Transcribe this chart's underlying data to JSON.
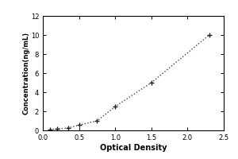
{
  "xlabel": "Optical Density",
  "ylabel": "Concentration(ng/mL)",
  "x_data": [
    0.1,
    0.2,
    0.35,
    0.5,
    0.75,
    1.0,
    1.5,
    2.3
  ],
  "y_data": [
    0.1,
    0.15,
    0.25,
    0.55,
    1.0,
    2.5,
    5.0,
    10.0
  ],
  "xlim": [
    0,
    2.5
  ],
  "ylim": [
    0,
    12
  ],
  "xticks": [
    0,
    0.5,
    1.0,
    1.5,
    2.0,
    2.5
  ],
  "yticks": [
    0,
    2,
    4,
    6,
    8,
    10,
    12
  ],
  "line_color": "#444444",
  "marker_color": "#222222",
  "bg_color": "#ffffff",
  "plot_bg": "#ffffff",
  "xlabel_fontsize": 7,
  "ylabel_fontsize": 6,
  "tick_fontsize": 6,
  "linewidth": 1.0,
  "markersize": 5,
  "markeredgewidth": 1.0
}
